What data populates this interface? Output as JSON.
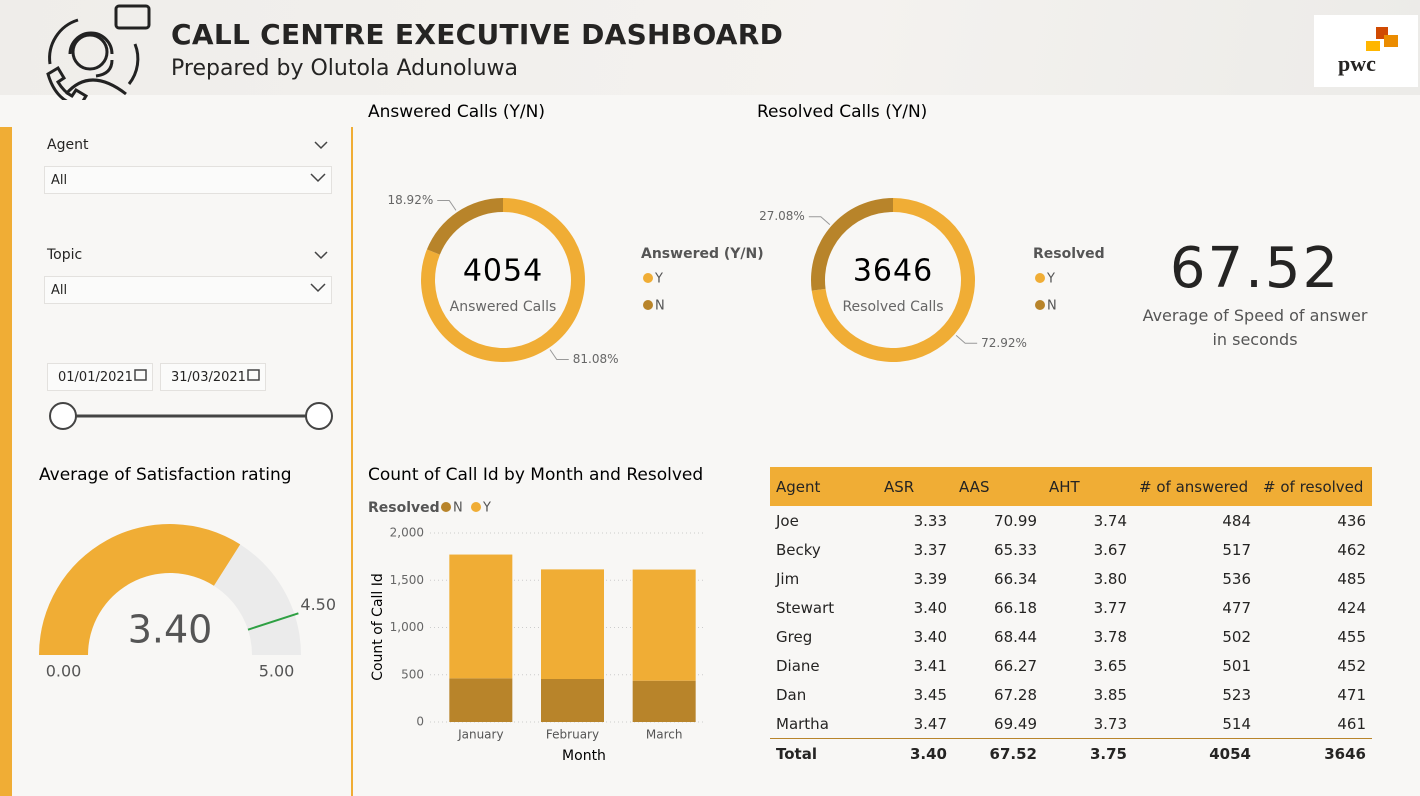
{
  "header": {
    "title": "CALL CENTRE EXECUTIVE DASHBOARD",
    "subtitle": "Prepared by Olutola Adunoluwa",
    "logo": "pwc"
  },
  "filters": {
    "agent": {
      "label": "Agent",
      "value": "All"
    },
    "topic": {
      "label": "Topic",
      "value": "All"
    },
    "date_start": "01/01/2021",
    "date_end": "31/03/2021"
  },
  "kpi": {
    "value": 67.52,
    "label": "Average of Speed of answer in seconds"
  },
  "chart_data": [
    {
      "type": "donut",
      "title": "Answered Calls (Y/N)",
      "legend_title": "Answered (Y/N)",
      "categories": [
        "Y",
        "N"
      ],
      "values": [
        81.08,
        18.92
      ],
      "value_labels": [
        "81.08%",
        "18.92%"
      ],
      "colors": [
        "#f0ad35",
        "#b8842a"
      ],
      "center_value": 4054,
      "center_label": "Answered Calls"
    },
    {
      "type": "donut",
      "title": "Resolved Calls (Y/N)",
      "legend_title": "Resolved",
      "categories": [
        "Y",
        "N"
      ],
      "values": [
        72.92,
        27.08
      ],
      "value_labels": [
        "72.92%",
        "27.08%"
      ],
      "colors": [
        "#f0ad35",
        "#b8842a"
      ],
      "center_value": 3646,
      "center_label": "Resolved Calls"
    },
    {
      "type": "gauge",
      "title": "Average of Satisfaction rating",
      "value": 3.4,
      "value_label": "3.40",
      "ylim": [
        0,
        5
      ],
      "yticks": [
        {
          "value": 0,
          "label": "0.00"
        },
        {
          "value": 5,
          "label": "5.00"
        }
      ],
      "target": {
        "value": 4.5,
        "label": "4.50"
      },
      "color": "#f0ad35",
      "target_color": "#2ea043",
      "track_color": "#ebebeb"
    },
    {
      "type": "bar",
      "stacked": true,
      "title": "Count of Call Id by Month and Resolved",
      "legend_title": "Resolved",
      "x_label": "Month",
      "y_label": "Count of Call Id",
      "categories": [
        "January",
        "February",
        "March"
      ],
      "series": [
        {
          "name": "N",
          "color": "#b8842a",
          "values": [
            462,
            455,
            437
          ]
        },
        {
          "name": "Y",
          "color": "#f0ad35",
          "values": [
            1310,
            1160,
            1176
          ]
        }
      ],
      "ylim": [
        0,
        2000
      ],
      "yticks": [
        0,
        500,
        {
          "value": 1000,
          "label": "1,000"
        },
        {
          "value": 1500,
          "label": "1,500"
        },
        {
          "value": 2000,
          "label": "2,000"
        }
      ],
      "grid": true
    }
  ],
  "table": {
    "columns": [
      "Agent",
      "ASR",
      "AAS",
      "AHT",
      "# of answered",
      "# of resolved"
    ],
    "rows": [
      [
        "Joe",
        "3.33",
        "70.99",
        "3.74",
        "484",
        "436"
      ],
      [
        "Becky",
        "3.37",
        "65.33",
        "3.67",
        "517",
        "462"
      ],
      [
        "Jim",
        "3.39",
        "66.34",
        "3.80",
        "536",
        "485"
      ],
      [
        "Stewart",
        "3.40",
        "66.18",
        "3.77",
        "477",
        "424"
      ],
      [
        "Greg",
        "3.40",
        "68.44",
        "3.78",
        "502",
        "455"
      ],
      [
        "Diane",
        "3.41",
        "66.27",
        "3.65",
        "501",
        "452"
      ],
      [
        "Dan",
        "3.45",
        "67.28",
        "3.85",
        "523",
        "471"
      ],
      [
        "Martha",
        "3.47",
        "69.49",
        "3.73",
        "514",
        "461"
      ]
    ],
    "total": [
      "Total",
      "3.40",
      "67.52",
      "3.75",
      "4054",
      "3646"
    ]
  }
}
